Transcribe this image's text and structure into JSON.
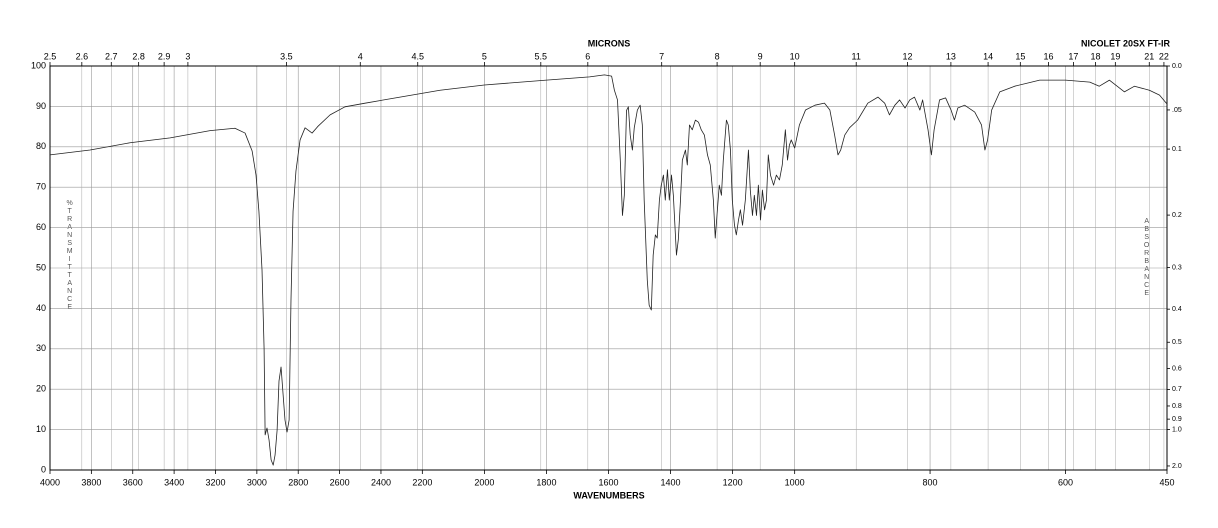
{
  "chart_data": {
    "type": "line",
    "top_title": "MICRONS",
    "instrument": "NICOLET 20SX FT-IR",
    "x_label": "WAVENUMBERS",
    "y_label": "%TRANSMITTANCE",
    "y2_label": "ABSORBANCE",
    "color": "#222222",
    "grid": true,
    "xlim": [
      4000,
      450
    ],
    "xbreaks": [
      2200,
      1000
    ],
    "xticks": [
      4000,
      3800,
      3600,
      3400,
      3200,
      3000,
      2800,
      2600,
      2400,
      2200,
      2000,
      1800,
      1600,
      1400,
      1200,
      1000,
      800,
      600,
      450
    ],
    "ylim": [
      0,
      100
    ],
    "yticks": [
      0,
      10,
      20,
      30,
      40,
      50,
      60,
      70,
      80,
      90,
      100
    ],
    "micron_ticks": [
      2.5,
      2.6,
      2.7,
      2.8,
      2.9,
      3,
      3.5,
      4,
      4.5,
      5,
      5.5,
      6,
      7,
      8,
      9,
      10,
      11,
      12,
      13,
      14,
      15,
      16,
      17,
      18,
      19,
      21,
      22
    ],
    "absorbance_ticks": [
      {
        "value": 0,
        "label": "0.0"
      },
      {
        "value": 0.05,
        "label": ".05"
      },
      0.1,
      0.2,
      0.3,
      0.4,
      0.5,
      0.6,
      0.7,
      0.8,
      0.9,
      {
        "value": 1,
        "label": "1.0"
      },
      {
        "value": 2,
        "label": "2.0"
      }
    ],
    "x": [
      4000,
      3806,
      3613,
      3419,
      3226,
      3106,
      3057,
      3023,
      3004,
      2990,
      2975,
      2965,
      2960,
      2951,
      2941,
      2931,
      2921,
      2912,
      2902,
      2893,
      2883,
      2873,
      2864,
      2854,
      2844,
      2835,
      2825,
      2811,
      2791,
      2767,
      2733,
      2704,
      2646,
      2574,
      2477,
      2308,
      2143,
      2000,
      1800,
      1661,
      1613,
      1590,
      1581,
      1571,
      1562,
      1555,
      1549,
      1542,
      1536,
      1530,
      1523,
      1517,
      1507,
      1498,
      1491,
      1485,
      1475,
      1469,
      1462,
      1456,
      1449,
      1443,
      1436,
      1430,
      1423,
      1417,
      1410,
      1404,
      1397,
      1391,
      1381,
      1375,
      1368,
      1362,
      1352,
      1346,
      1339,
      1330,
      1320,
      1310,
      1301,
      1291,
      1281,
      1272,
      1262,
      1256,
      1249,
      1243,
      1236,
      1230,
      1220,
      1214,
      1207,
      1201,
      1194,
      1188,
      1181,
      1175,
      1168,
      1159,
      1149,
      1143,
      1136,
      1130,
      1123,
      1117,
      1110,
      1104,
      1097,
      1091,
      1085,
      1078,
      1068,
      1059,
      1049,
      1040,
      1030,
      1023,
      1017,
      1011,
      1000,
      993,
      984,
      970,
      956,
      948,
      941,
      936,
      932,
      926,
      919,
      907,
      892,
      877,
      867,
      860,
      852,
      845,
      837,
      830,
      823,
      815,
      811,
      803,
      798,
      794,
      786,
      777,
      769,
      764,
      759,
      749,
      734,
      724,
      719,
      715,
      709,
      697,
      675,
      638,
      600,
      564,
      550,
      535,
      513,
      498,
      476,
      461,
      450
    ],
    "values": [
      78,
      79.2,
      81,
      82.2,
      84,
      84.6,
      83.4,
      79,
      73,
      64,
      49.5,
      30,
      8.7,
      10.4,
      7.4,
      2.5,
      1.2,
      3.7,
      9.9,
      22,
      25.5,
      18.6,
      12.4,
      9.4,
      12.4,
      42,
      64,
      74,
      81.7,
      84.7,
      83.4,
      85.1,
      87.9,
      89.9,
      90.8,
      92.3,
      94,
      95.3,
      96.5,
      97.3,
      97.8,
      97.5,
      94,
      91.6,
      76.7,
      63,
      68,
      89,
      89.9,
      82.9,
      79.2,
      84.7,
      89.1,
      90.3,
      85.4,
      66.8,
      47,
      40.8,
      39.6,
      53.2,
      58.2,
      57.4,
      66.8,
      70.5,
      73,
      66.8,
      74.3,
      66.8,
      73,
      68,
      53.2,
      57,
      66.8,
      76.7,
      79.2,
      75.5,
      85.4,
      84.2,
      86.6,
      86.1,
      84.2,
      82.9,
      78,
      75.5,
      66.8,
      57.4,
      64.4,
      70.5,
      68,
      76.7,
      86.6,
      85.4,
      79.2,
      66.8,
      60.6,
      58.2,
      61.9,
      64.4,
      60.6,
      66.8,
      79.2,
      69.3,
      63,
      68,
      63,
      70.5,
      61.9,
      69.3,
      64.4,
      66.8,
      78,
      73,
      70.5,
      73,
      71.8,
      75.5,
      84.2,
      76.7,
      80.4,
      81.7,
      79.7,
      85.4,
      89.1,
      90.3,
      90.8,
      89.1,
      82.9,
      78,
      79.2,
      82.9,
      84.7,
      86.6,
      90.8,
      92.3,
      90.8,
      87.9,
      90.3,
      91.6,
      89.6,
      91.6,
      92.3,
      89.1,
      91.6,
      84.2,
      78,
      84.2,
      91.6,
      92.1,
      89.1,
      86.6,
      89.6,
      90.3,
      88.6,
      85.4,
      79.2,
      81.7,
      89.1,
      93.6,
      95,
      96.5,
      96.5,
      96,
      95,
      96.5,
      93.6,
      95,
      94,
      92.8,
      90.6
    ]
  }
}
